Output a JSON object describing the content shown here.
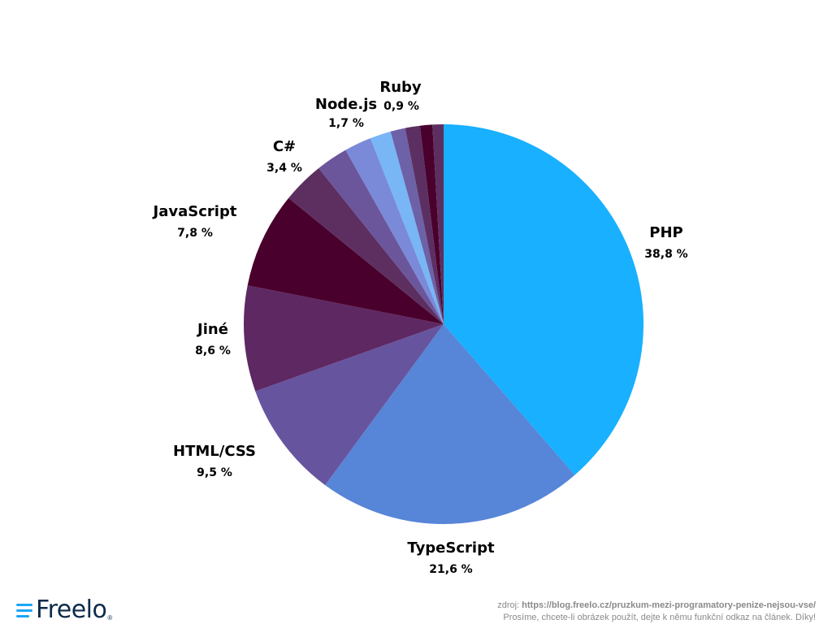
{
  "chart_data": {
    "type": "pie",
    "title": "",
    "start_angle_deg": 0,
    "direction": "clockwise",
    "slices": [
      {
        "label": "PHP",
        "value": 38.8,
        "value_text": "38,8 %",
        "color": "#18b0ff"
      },
      {
        "label": "TypeScript",
        "value": 21.6,
        "value_text": "21,6 %",
        "color": "#5785d8"
      },
      {
        "label": "HTML/CSS",
        "value": 9.5,
        "value_text": "9,5 %",
        "color": "#66559e"
      },
      {
        "label": "Jiné",
        "value": 8.6,
        "value_text": "8,6 %",
        "color": "#5e2863"
      },
      {
        "label": "JavaScript",
        "value": 7.8,
        "value_text": "7,8 %",
        "color": "#49002d"
      },
      {
        "label": "C#",
        "value": 3.4,
        "value_text": "3,4 %",
        "color": "#5d2f60"
      },
      {
        "label": "",
        "value": 2.6,
        "value_text": "",
        "color": "#6b569c"
      },
      {
        "label": "",
        "value": 2.2,
        "value_text": "",
        "color": "#7a8ad8"
      },
      {
        "label": "Node.js",
        "value": 1.7,
        "value_text": "1,7 %",
        "color": "#78b6f5"
      },
      {
        "label": "",
        "value": 1.2,
        "value_text": "",
        "color": "#6d61a7"
      },
      {
        "label": "",
        "value": 1.2,
        "value_text": "",
        "color": "#5c2f63"
      },
      {
        "label": "",
        "value": 1.0,
        "value_text": "",
        "color": "#49002d"
      },
      {
        "label": "Ruby",
        "value": 0.9,
        "value_text": "0,9 %",
        "color": "#5d2f60"
      }
    ]
  },
  "logo": {
    "text": "Freelo",
    "reg": "®"
  },
  "source": {
    "prefix": "zdroj: ",
    "url": "https://blog.freelo.cz/pruzkum-mezi-programatory-penize-nejsou-vse/",
    "note": "Prosíme, chcete-li obrázek použít, dejte k němu funkční odkaz na článek. Díky!"
  }
}
